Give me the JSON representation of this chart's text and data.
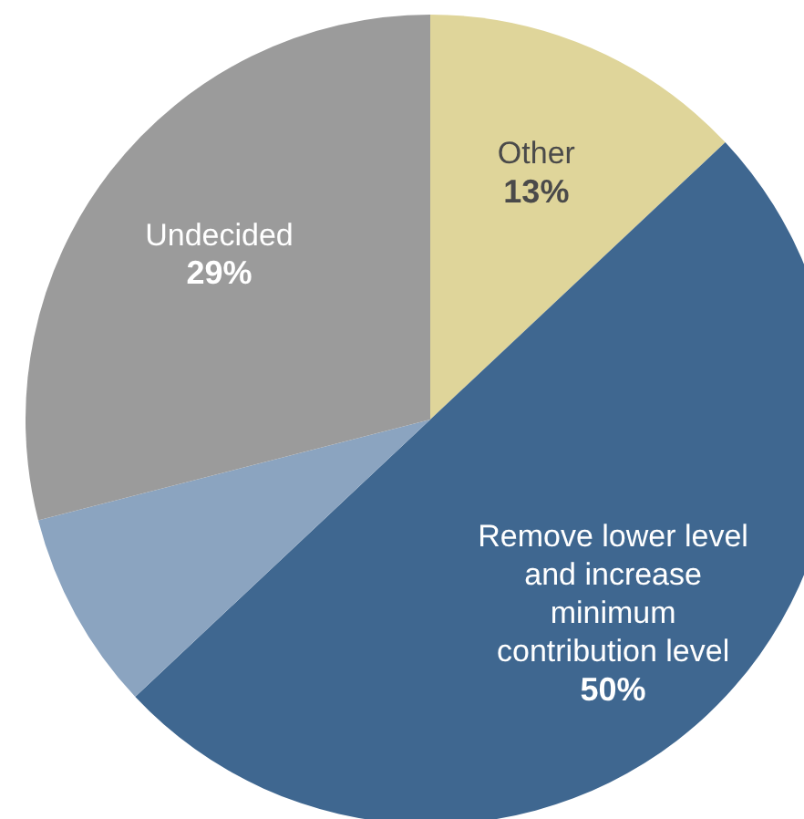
{
  "chart_data": {
    "type": "pie",
    "categories": [
      "Other",
      "Remove lower level and increase minimum contribution level",
      null,
      "Undecided"
    ],
    "values": [
      13,
      50,
      8,
      29
    ],
    "colors": [
      "#dfd59a",
      "#3f6790",
      "#8ba4c0",
      "#9b9b9b"
    ],
    "value_labels": [
      "13%",
      "50%",
      null,
      "29%"
    ],
    "legend": false
  }
}
